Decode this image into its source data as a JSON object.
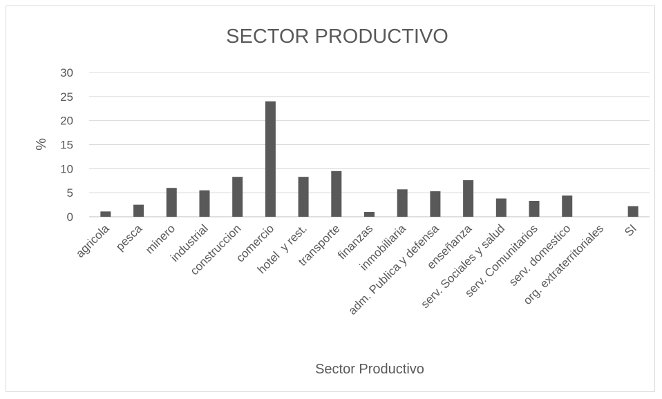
{
  "chart_data": {
    "type": "bar",
    "title": "SECTOR PRODUCTIVO",
    "xlabel": "Sector Productivo",
    "ylabel": "%",
    "ylim": [
      0,
      30
    ],
    "yticks": [
      0,
      5,
      10,
      15,
      20,
      25,
      30
    ],
    "grid": true,
    "legend": "none",
    "bar_color": "#595959",
    "categories": [
      "agricola",
      "pesca",
      "minero",
      "industrial",
      "construccion",
      "comercio",
      "hotel  y rest.",
      "transporte",
      "finanzas",
      "inmobiliaria",
      "adm. Publica y defensa",
      "enseñanza",
      "serv. Sociales y salud",
      "serv. Comunitarios",
      "serv. domestico",
      "org. extraterritoriales",
      "SI"
    ],
    "values": [
      1.1,
      2.5,
      6.0,
      5.5,
      8.3,
      24.0,
      8.3,
      9.5,
      1.0,
      5.7,
      5.3,
      7.6,
      3.8,
      3.3,
      4.4,
      0,
      2.2
    ]
  }
}
